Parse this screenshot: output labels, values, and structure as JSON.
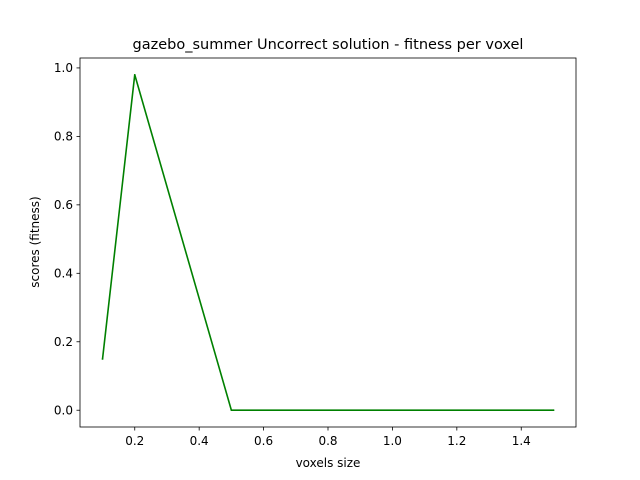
{
  "chart_data": {
    "type": "line",
    "title": "gazebo_summer Uncorrect solution - fitness per voxel",
    "xlabel": "voxels size",
    "ylabel": "scores (fitness)",
    "xlim": [
      0.03,
      1.57
    ],
    "ylim": [
      -0.049,
      1.029
    ],
    "xticks": [
      0.2,
      0.4,
      0.6,
      0.8,
      1.0,
      1.2,
      1.4
    ],
    "xtick_labels": [
      "0.2",
      "0.4",
      "0.6",
      "0.8",
      "1.0",
      "1.2",
      "1.4"
    ],
    "yticks": [
      0.0,
      0.2,
      0.4,
      0.6,
      0.8,
      1.0
    ],
    "ytick_labels": [
      "0.0",
      "0.2",
      "0.4",
      "0.6",
      "0.8",
      "1.0"
    ],
    "grid": false,
    "series": [
      {
        "color": "#008000",
        "x": [
          0.1,
          0.2,
          0.5,
          1.5
        ],
        "y": [
          0.15,
          0.98,
          0.0,
          0.0
        ]
      }
    ]
  }
}
